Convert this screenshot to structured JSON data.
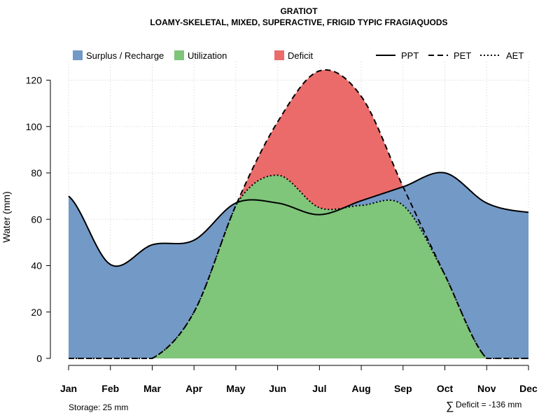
{
  "chart_data": {
    "type": "area",
    "title": "GRATIOT",
    "subtitle": "LOAMY-SKELETAL, MIXED, SUPERACTIVE, FRIGID TYPIC FRAGIAQUODS",
    "xlabel": "",
    "ylabel": "Water (mm)",
    "categories": [
      "Jan",
      "Feb",
      "Mar",
      "Apr",
      "May",
      "Jun",
      "Jul",
      "Aug",
      "Sep",
      "Oct",
      "Nov",
      "Dec"
    ],
    "ylim": [
      0,
      128
    ],
    "yticks": [
      0,
      20,
      40,
      60,
      80,
      100,
      120
    ],
    "grid": true,
    "series": [
      {
        "name": "PPT",
        "style": "solid",
        "values": [
          70,
          40.5,
          49,
          51,
          67,
          67,
          62,
          68,
          74,
          80,
          67,
          63
        ]
      },
      {
        "name": "PET",
        "style": "dashed",
        "values": [
          0,
          0,
          0,
          20,
          66,
          102,
          124,
          113,
          74,
          36,
          0,
          0
        ]
      },
      {
        "name": "AET",
        "style": "dotted",
        "values": [
          0,
          0,
          0,
          20,
          66,
          79,
          65,
          66,
          66,
          36,
          0,
          0
        ]
      }
    ],
    "legend": {
      "position": "top",
      "fills": [
        {
          "label": "Surplus / Recharge",
          "color": "#7399C6"
        },
        {
          "label": "Utilization",
          "color": "#7FC57A"
        },
        {
          "label": "Deficit",
          "color": "#EB6B6B"
        }
      ],
      "lines": [
        {
          "label": "PPT",
          "style": "solid"
        },
        {
          "label": "PET",
          "style": "dashed"
        },
        {
          "label": "AET",
          "style": "dotted"
        }
      ]
    },
    "annotations": {
      "storage": "Storage: 25 mm",
      "deficit_symbol": "∑",
      "deficit": "Deficit = -136 mm"
    }
  }
}
